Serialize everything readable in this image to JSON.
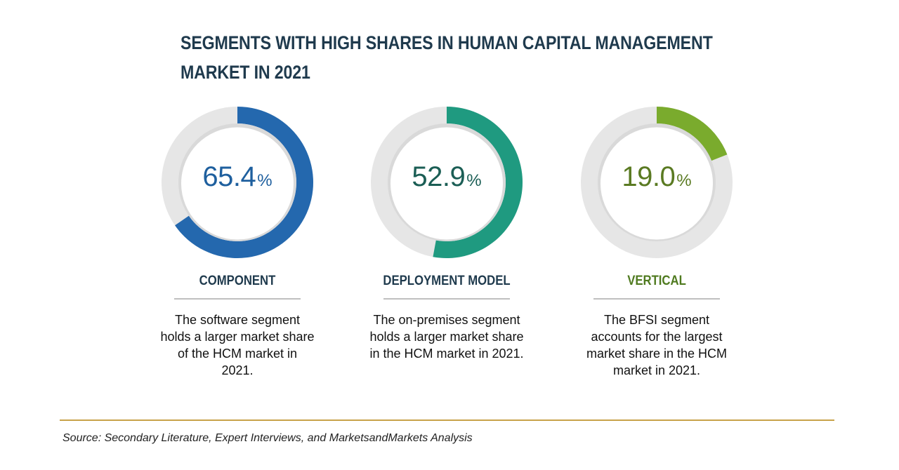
{
  "title": "SEGMENTS WITH HIGH SHARES IN HUMAN CAPITAL MANAGEMENT MARKET IN 2021",
  "source": "Source: Secondary Literature, Expert Interviews, and MarketsandMarkets Analysis",
  "colors": {
    "track": "#e6e6e6",
    "inner_shadow": "#d9d9d9",
    "title": "#1f3a4d",
    "source_rule": "#c8a24a"
  },
  "chart_data": [
    {
      "type": "pie",
      "value": 65.4,
      "value_label": "65.4",
      "unit": "%",
      "category": "COMPONENT",
      "description": "The software segment holds a larger market share of the HCM market in 2021.",
      "color": "#2468ae",
      "text_color": "#1e5f9e",
      "label_color": "#1f3a4d"
    },
    {
      "type": "pie",
      "value": 52.9,
      "value_label": "52.9",
      "unit": "%",
      "category": "DEPLOYMENT MODEL",
      "description": "The on-premises segment holds a larger market share in the HCM market in 2021.",
      "color": "#1f9a80",
      "text_color": "#1b5e55",
      "label_color": "#1f3a4d"
    },
    {
      "type": "pie",
      "value": 19.0,
      "value_label": "19.0",
      "unit": "%",
      "category": "VERTICAL",
      "description": "The BFSI segment accounts for the largest market share in the HCM market in 2021.",
      "color": "#7aab2d",
      "text_color": "#5a7a22",
      "label_color": "#4f7a1f"
    }
  ]
}
